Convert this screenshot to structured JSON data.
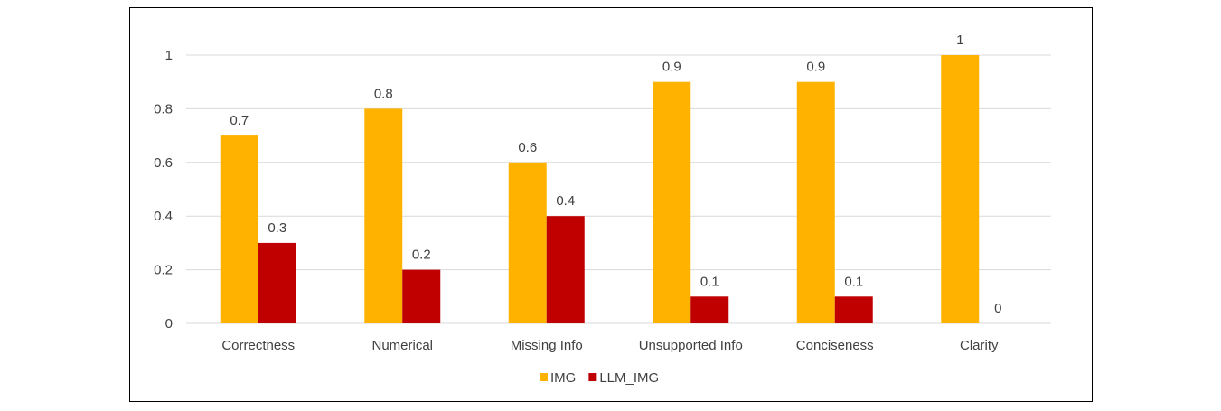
{
  "chart_data": {
    "type": "bar",
    "categories": [
      "Correctness",
      "Numerical",
      "Missing Info",
      "Unsupported Info",
      "Conciseness",
      "Clarity"
    ],
    "series": [
      {
        "name": "IMG",
        "values": [
          0.7,
          0.8,
          0.6,
          0.9,
          0.9,
          1
        ],
        "color": "#FFB300"
      },
      {
        "name": "LLM_IMG",
        "values": [
          0.3,
          0.2,
          0.4,
          0.1,
          0.1,
          0
        ],
        "color": "#C00000"
      }
    ],
    "yticks": [
      "0",
      "0.2",
      "0.4",
      "0.6",
      "0.8",
      "1"
    ],
    "ylim": [
      0,
      1
    ],
    "grid": true,
    "legend": "bottom",
    "title": "",
    "xlabel": "",
    "ylabel": ""
  }
}
